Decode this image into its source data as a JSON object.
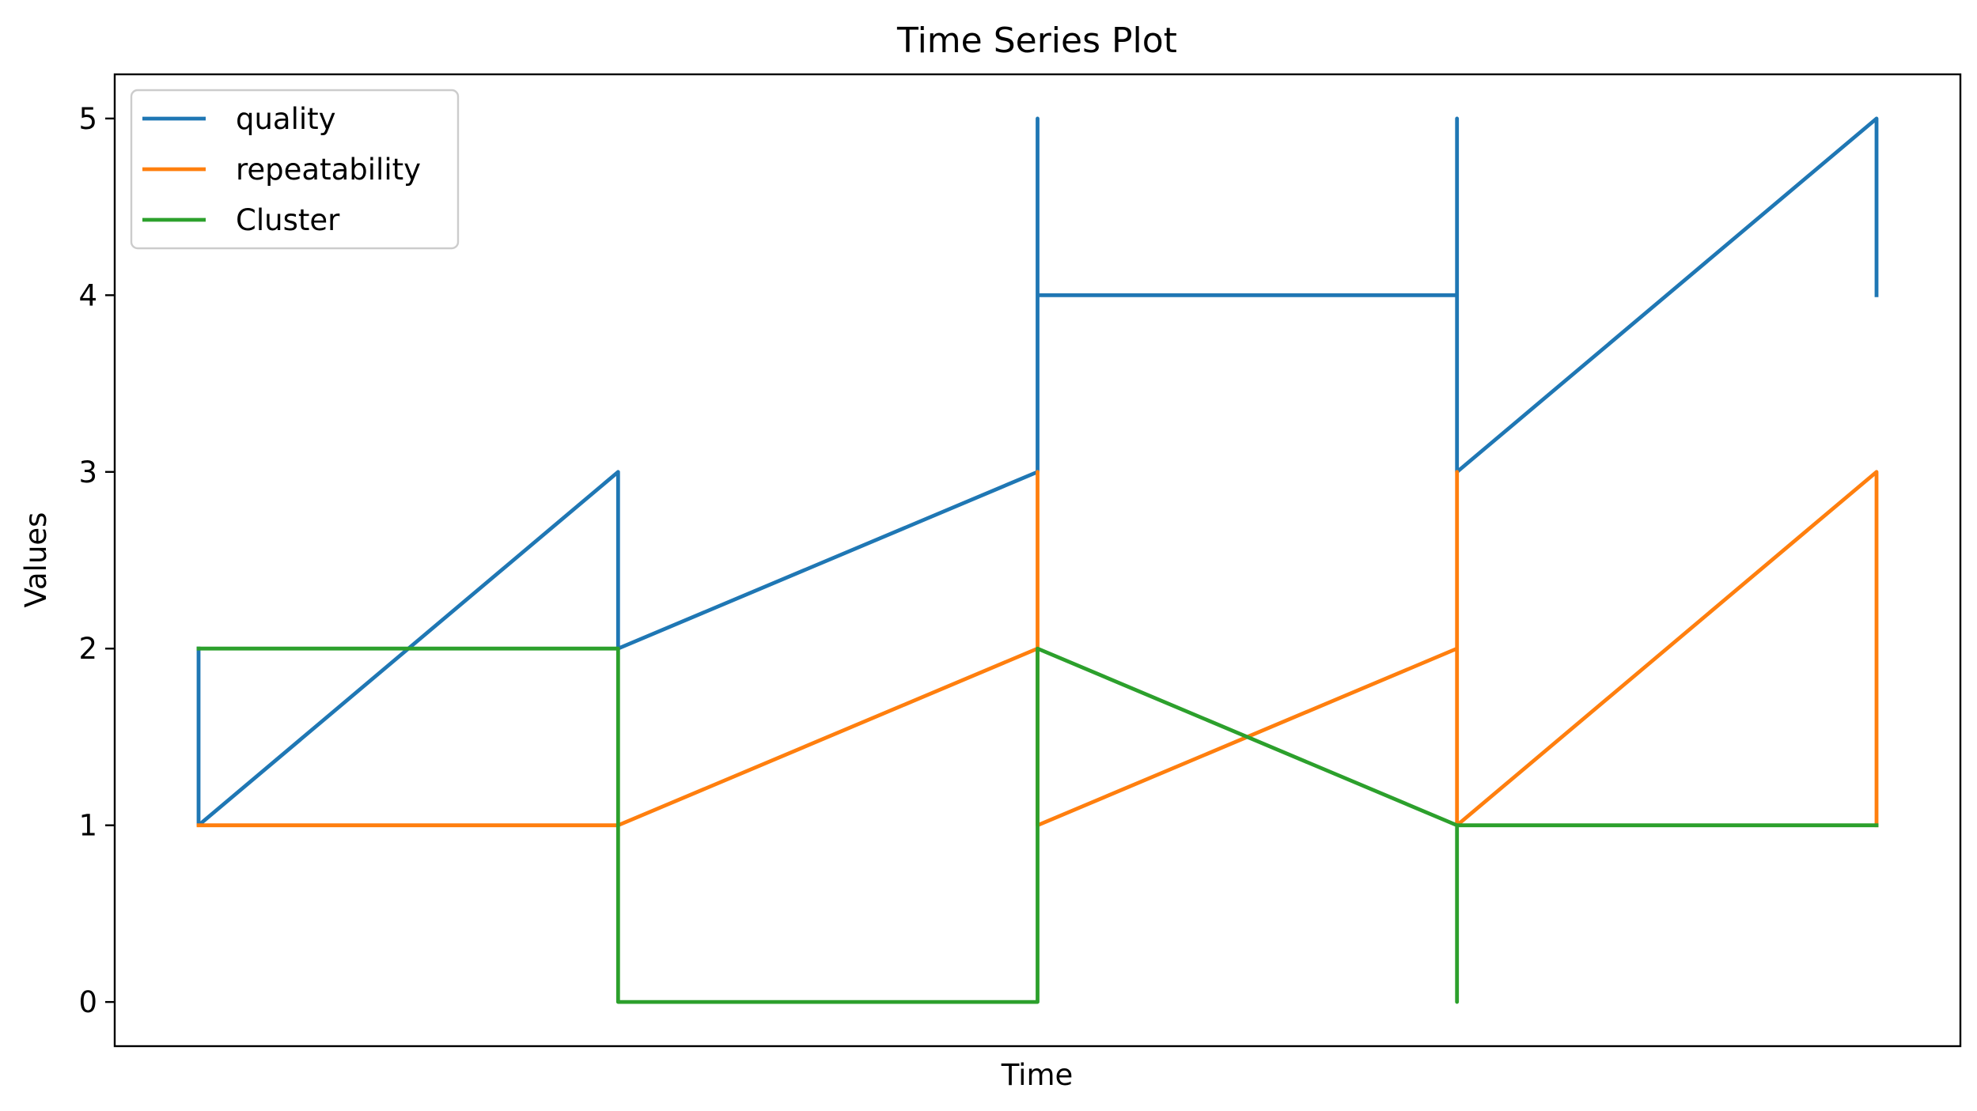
{
  "chart_data": {
    "type": "line",
    "title": "Time Series Plot",
    "xlabel": "Time",
    "ylabel": "Values",
    "ylim": [
      -0.25,
      5.25
    ],
    "yticks": [
      0,
      1,
      2,
      3,
      4,
      5
    ],
    "xticks_shown": false,
    "grid": false,
    "legend_position": "top-left",
    "x": [
      0,
      0,
      1,
      1,
      2,
      2,
      2,
      3,
      3,
      3,
      4,
      4
    ],
    "series": [
      {
        "name": "quality",
        "color": "#1f77b4",
        "values": [
          2,
          1,
          3,
          2,
          3,
          5,
          4,
          4,
          5,
          3,
          5,
          4
        ]
      },
      {
        "name": "repeatability",
        "color": "#ff7f0e",
        "values": [
          1,
          1,
          1,
          1,
          2,
          3,
          1,
          2,
          3,
          1,
          3,
          1
        ]
      },
      {
        "name": "Cluster",
        "color": "#2ca02c",
        "values": [
          2,
          2,
          2,
          0,
          0,
          2,
          2,
          1,
          0,
          1,
          1,
          1
        ]
      }
    ]
  }
}
